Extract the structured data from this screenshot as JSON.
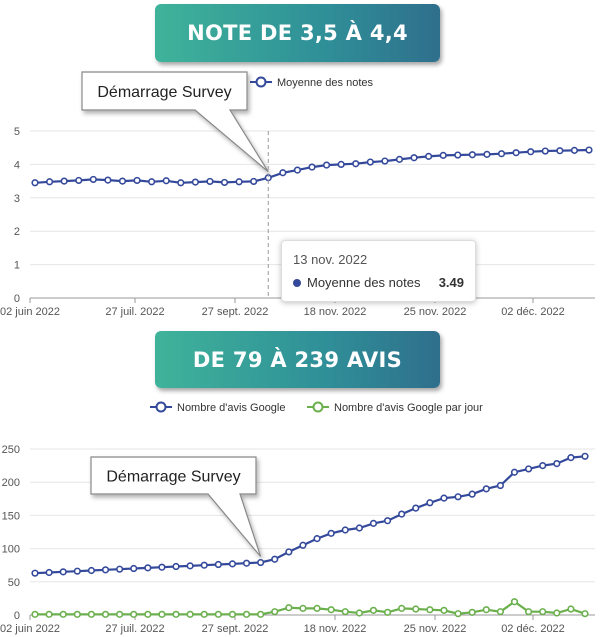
{
  "banners": {
    "top": "NOTE DE 3,5 À 4,4",
    "bottom": "DE 79 À 239 AVIS"
  },
  "x_tick_labels": [
    "02 juin 2022",
    "27 juil. 2022",
    "27 sept. 2022",
    "18 nov. 2022",
    "25 nov. 2022",
    "02 déc. 2022"
  ],
  "colors": {
    "series_blue": "#34499b",
    "series_green": "#6ab04c",
    "banner_start": "#3fb39a",
    "banner_end": "#2f6f8c"
  },
  "tooltip": {
    "date": "13 nov. 2022",
    "label": "Moyenne des notes",
    "value": "3.49"
  },
  "chart_data": [
    {
      "type": "line",
      "title": "",
      "xlabel": "",
      "ylabel": "",
      "ylim": [
        0,
        5
      ],
      "y_ticks": [
        "0",
        "1",
        "2",
        "3",
        "4",
        "5"
      ],
      "grid": true,
      "legend": "top",
      "annotation": "Démarrage Survey",
      "annotation_x_index": 16,
      "series": [
        {
          "name": "Moyenne des notes",
          "color": "#34499b",
          "values": [
            3.45,
            3.48,
            3.5,
            3.52,
            3.55,
            3.53,
            3.5,
            3.52,
            3.48,
            3.51,
            3.45,
            3.47,
            3.49,
            3.46,
            3.48,
            3.49,
            3.6,
            3.75,
            3.83,
            3.92,
            3.98,
            4.0,
            4.02,
            4.07,
            4.1,
            4.15,
            4.2,
            4.24,
            4.27,
            4.28,
            4.29,
            4.3,
            4.32,
            4.35,
            4.38,
            4.4,
            4.41,
            4.42,
            4.43
          ]
        }
      ]
    },
    {
      "type": "line",
      "title": "",
      "xlabel": "",
      "ylabel": "",
      "ylim": [
        0,
        250
      ],
      "y_ticks": [
        "0",
        "50",
        "100",
        "150",
        "200",
        "250"
      ],
      "grid": true,
      "legend": "top",
      "annotation": "Démarrage Survey",
      "annotation_x_index": 16,
      "series": [
        {
          "name": "Nombre d'avis Google",
          "color": "#34499b",
          "values": [
            63,
            64,
            65,
            66,
            67,
            68,
            69,
            70,
            71,
            72,
            73,
            74,
            75,
            76,
            77,
            78,
            79,
            84,
            95,
            105,
            115,
            123,
            128,
            131,
            138,
            142,
            152,
            161,
            169,
            176,
            178,
            182,
            190,
            195,
            215,
            220,
            225,
            228,
            237,
            239
          ]
        },
        {
          "name": "Nombre d'avis Google par jour",
          "color": "#6ab04c",
          "values": [
            1,
            1,
            1,
            1,
            1,
            1,
            1,
            1,
            1,
            1,
            1,
            1,
            1,
            1,
            1,
            1,
            1,
            5,
            11,
            10,
            10,
            8,
            5,
            3,
            7,
            4,
            10,
            9,
            8,
            7,
            2,
            4,
            8,
            5,
            20,
            5,
            5,
            3,
            9,
            2
          ]
        }
      ]
    }
  ]
}
